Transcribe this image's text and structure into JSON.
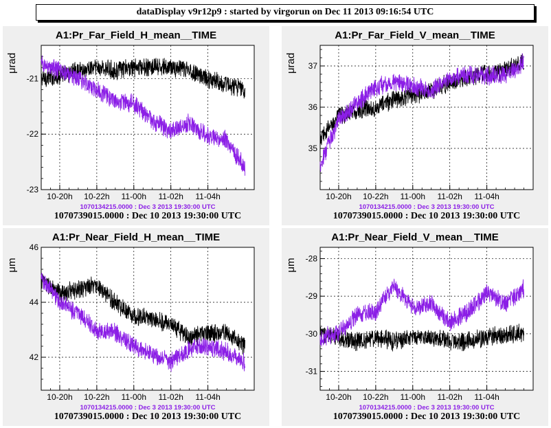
{
  "header": {
    "title": "dataDisplay v9r12p9 : started by virgorun on Dec 11 2013 09:16:54 UTC"
  },
  "colors": {
    "reference_series": "#000000",
    "current_series": "#8b1ee6",
    "pad_background": "#efefef"
  },
  "chart_data": [
    {
      "type": "line",
      "title": "A1:Pr_Far_Field_H_mean__TIME",
      "ylabel": "μrad",
      "ylim": [
        -23,
        -20.4
      ],
      "yticks": [
        -23,
        -22,
        -21
      ],
      "x_ticks": [
        "10-20h",
        "10-22h",
        "11-00h",
        "11-02h",
        "11-04h"
      ],
      "footer_purple": "1070134215.0000 : Dec  3 2013 19:30:00 UTC",
      "footer_black": "1070739015.0000 : Dec 10 2013 19:30:00 UTC",
      "grid": true,
      "series": [
        {
          "color": "#000000",
          "x": [
            19.0,
            20.0,
            21.0,
            22.0,
            23.0,
            24.0,
            25.0,
            26.0,
            27.0,
            28.0,
            29.0,
            30.0
          ],
          "y": [
            -21.0,
            -20.95,
            -20.85,
            -20.8,
            -20.85,
            -20.8,
            -20.8,
            -20.8,
            -20.85,
            -21.0,
            -21.1,
            -21.2
          ]
        },
        {
          "color": "#8b1ee6",
          "x": [
            19.0,
            20.0,
            21.0,
            22.0,
            23.0,
            24.0,
            25.0,
            26.0,
            27.0,
            28.0,
            29.0,
            30.0
          ],
          "y": [
            -20.75,
            -20.85,
            -21.0,
            -21.2,
            -21.4,
            -21.45,
            -21.75,
            -21.95,
            -21.8,
            -22.05,
            -22.1,
            -22.6
          ]
        }
      ]
    },
    {
      "type": "line",
      "title": "A1:Pr_Far_Field_V_mean__TIME",
      "ylabel": "μrad",
      "ylim": [
        34,
        37.5
      ],
      "yticks": [
        35,
        36,
        37
      ],
      "x_ticks": [
        "10-20h",
        "10-22h",
        "11-00h",
        "11-02h",
        "11-04h"
      ],
      "footer_purple": "1070134215.0000 : Dec  3 2013 19:30:00 UTC",
      "footer_black": "1070739015.0000 : Dec 10 2013 19:30:00 UTC",
      "grid": true,
      "series": [
        {
          "color": "#000000",
          "x": [
            19.0,
            20.0,
            21.0,
            22.0,
            23.0,
            24.0,
            25.0,
            26.0,
            27.0,
            28.0,
            29.0,
            30.0
          ],
          "y": [
            35.2,
            35.8,
            35.9,
            36.0,
            36.2,
            36.3,
            36.4,
            36.6,
            36.7,
            36.8,
            36.9,
            37.1
          ]
        },
        {
          "color": "#8b1ee6",
          "x": [
            19.0,
            20.0,
            21.0,
            22.0,
            23.0,
            24.0,
            25.0,
            26.0,
            27.0,
            28.0,
            29.0,
            30.0
          ],
          "y": [
            34.6,
            35.7,
            36.1,
            36.5,
            36.6,
            36.5,
            36.4,
            36.7,
            36.8,
            36.75,
            36.8,
            37.1
          ]
        }
      ]
    },
    {
      "type": "line",
      "title": "A1:Pr_Near_Field_H_mean__TIME",
      "ylabel": "μm",
      "ylim": [
        40.8,
        46
      ],
      "yticks": [
        42,
        44,
        46
      ],
      "x_ticks": [
        "10-20h",
        "10-22h",
        "11-00h",
        "11-02h",
        "11-04h"
      ],
      "footer_purple": "1070134215.0000 : Dec  3 2013 19:30:00 UTC",
      "footer_black": "1070739015.0000 : Dec 10 2013 19:30:00 UTC",
      "grid": true,
      "series": [
        {
          "color": "#000000",
          "x": [
            19.0,
            20.0,
            21.0,
            22.0,
            23.0,
            24.0,
            25.0,
            26.0,
            27.0,
            28.0,
            29.0,
            30.0
          ],
          "y": [
            44.8,
            44.3,
            44.5,
            44.6,
            44.0,
            43.5,
            43.4,
            43.2,
            42.7,
            42.9,
            42.9,
            42.4
          ]
        },
        {
          "color": "#8b1ee6",
          "x": [
            19.0,
            20.0,
            21.0,
            22.0,
            23.0,
            24.0,
            25.0,
            26.0,
            27.0,
            28.0,
            29.0,
            30.0
          ],
          "y": [
            44.9,
            44.0,
            43.6,
            43.0,
            42.9,
            42.4,
            42.1,
            41.8,
            42.3,
            42.4,
            42.2,
            41.8
          ]
        }
      ]
    },
    {
      "type": "line",
      "title": "A1:Pr_Near_Field_V_mean__TIME",
      "ylabel": "μm",
      "ylim": [
        -31.5,
        -27.7
      ],
      "yticks": [
        -31,
        -30,
        -29,
        -28
      ],
      "x_ticks": [
        "10-20h",
        "10-22h",
        "11-00h",
        "11-02h",
        "11-04h"
      ],
      "footer_purple": "1070134215.0000 : Dec  3 2013 19:30:00 UTC",
      "footer_black": "1070739015.0000 : Dec 10 2013 19:30:00 UTC",
      "grid": true,
      "series": [
        {
          "color": "#000000",
          "x": [
            19.0,
            20.0,
            21.0,
            22.0,
            23.0,
            24.0,
            25.0,
            26.0,
            27.0,
            28.0,
            29.0,
            30.0
          ],
          "y": [
            -30.0,
            -30.1,
            -30.2,
            -30.1,
            -30.2,
            -30.1,
            -30.1,
            -30.2,
            -30.2,
            -30.1,
            -30.0,
            -30.0
          ]
        },
        {
          "color": "#8b1ee6",
          "x": [
            19.0,
            20.0,
            21.0,
            22.0,
            23.0,
            24.0,
            25.0,
            26.0,
            27.0,
            28.0,
            29.0,
            30.0
          ],
          "y": [
            -30.1,
            -30.0,
            -29.5,
            -29.4,
            -28.7,
            -29.3,
            -29.2,
            -29.7,
            -29.4,
            -28.9,
            -29.2,
            -28.8
          ]
        }
      ]
    }
  ]
}
